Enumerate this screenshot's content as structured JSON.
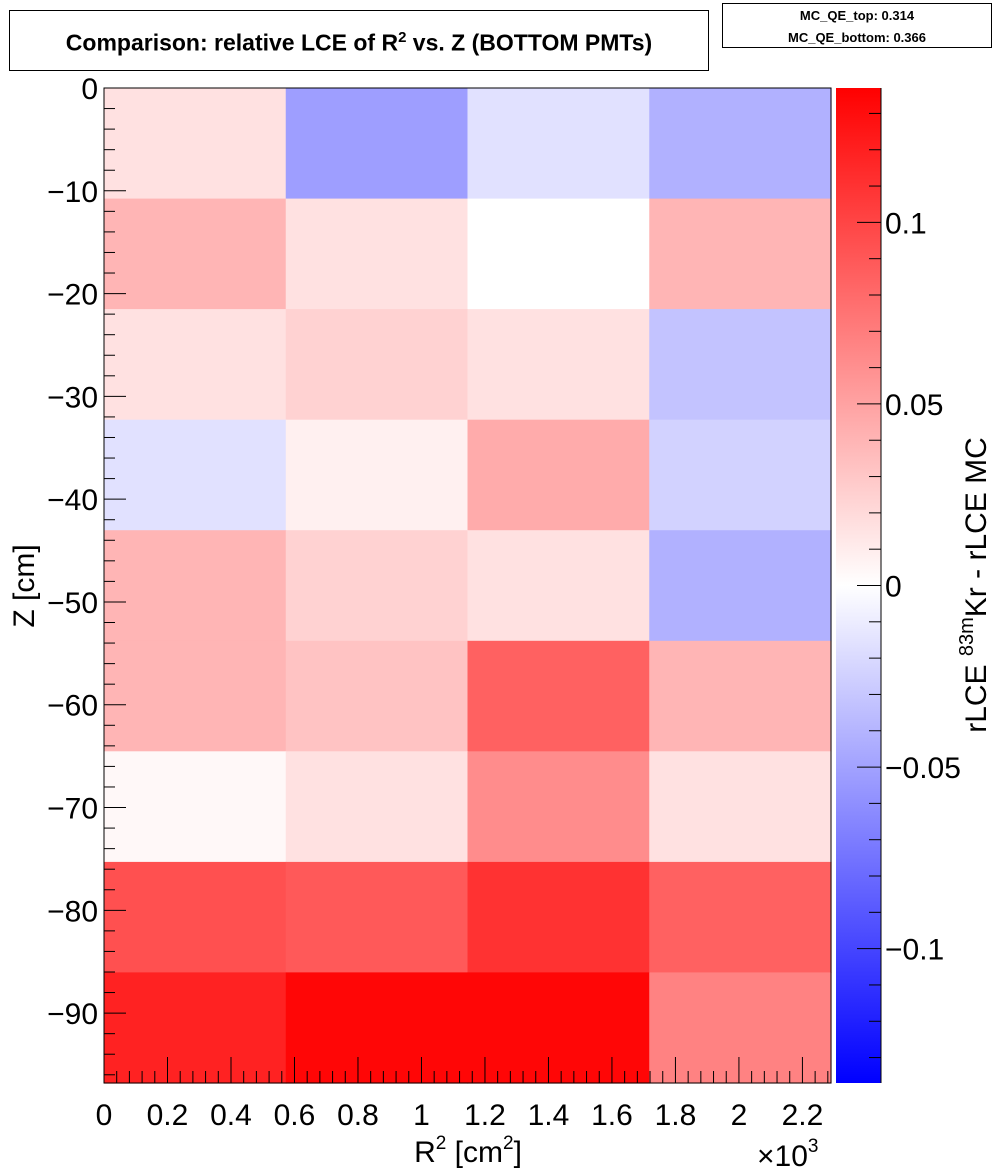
{
  "title": {
    "prefix": "Comparison: relative LCE of R",
    "sup": "2",
    "suffix": " vs. Z (BOTTOM PMTs)"
  },
  "stats": {
    "top": "MC_QE_top: 0.314",
    "bottom": "MC_QE_bottom: 0.366"
  },
  "chart_data": {
    "type": "heatmap",
    "xlabel": {
      "base": "R",
      "sup1": "2",
      "unit_open": " [cm",
      "sup2": "2",
      "unit_close": "]"
    },
    "x_multiplier": {
      "sym": "×10",
      "sup": "3"
    },
    "ylabel": "Z [cm]",
    "zlabel": {
      "pre": "rLCE ",
      "sup": "83m",
      "post": "Kr - rLCE MC"
    },
    "xlim": [
      0,
      2290
    ],
    "ylim": [
      -96.8,
      0
    ],
    "zlim": [
      -0.137,
      0.137
    ],
    "x_edges": [
      0,
      572.5,
      1145,
      1717.5,
      2290
    ],
    "y_edges": [
      0,
      -10.76,
      -21.51,
      -32.27,
      -43.02,
      -53.78,
      -64.53,
      -75.29,
      -86.04,
      -96.8
    ],
    "x_ticks": [
      {
        "v": 0,
        "label": "0"
      },
      {
        "v": 200,
        "label": "0.2"
      },
      {
        "v": 400,
        "label": "0.4"
      },
      {
        "v": 600,
        "label": "0.6"
      },
      {
        "v": 800,
        "label": "0.8"
      },
      {
        "v": 1000,
        "label": "1"
      },
      {
        "v": 1200,
        "label": "1.2"
      },
      {
        "v": 1400,
        "label": "1.4"
      },
      {
        "v": 1600,
        "label": "1.6"
      },
      {
        "v": 1800,
        "label": "1.8"
      },
      {
        "v": 2000,
        "label": "2"
      },
      {
        "v": 2200,
        "label": "2.2"
      }
    ],
    "y_ticks": [
      {
        "v": 0,
        "label": "0"
      },
      {
        "v": -10,
        "label": "−10"
      },
      {
        "v": -20,
        "label": "−20"
      },
      {
        "v": -30,
        "label": "−30"
      },
      {
        "v": -40,
        "label": "−40"
      },
      {
        "v": -50,
        "label": "−50"
      },
      {
        "v": -60,
        "label": "−60"
      },
      {
        "v": -70,
        "label": "−70"
      },
      {
        "v": -80,
        "label": "−80"
      },
      {
        "v": -90,
        "label": "−90"
      }
    ],
    "z_ticks": [
      {
        "v": 0.1,
        "label": "0.1"
      },
      {
        "v": 0.05,
        "label": "0.05"
      },
      {
        "v": 0,
        "label": "0"
      },
      {
        "v": -0.05,
        "label": "−0.05"
      },
      {
        "v": -0.1,
        "label": "−0.1"
      }
    ],
    "values": [
      [
        0.016,
        -0.052,
        -0.016,
        -0.042
      ],
      [
        0.04,
        0.016,
        0.0,
        0.04
      ],
      [
        0.016,
        0.024,
        0.016,
        -0.032
      ],
      [
        -0.016,
        0.008,
        0.045,
        -0.024
      ],
      [
        0.04,
        0.024,
        0.016,
        -0.042
      ],
      [
        0.04,
        0.032,
        0.085,
        0.04
      ],
      [
        0.004,
        0.016,
        0.062,
        0.016
      ],
      [
        0.094,
        0.089,
        0.11,
        0.085
      ],
      [
        0.119,
        0.134,
        0.134,
        0.067
      ]
    ],
    "colors": {
      "low": "#0000ff",
      "mid": "#ffffff",
      "high": "#ff0000"
    }
  }
}
